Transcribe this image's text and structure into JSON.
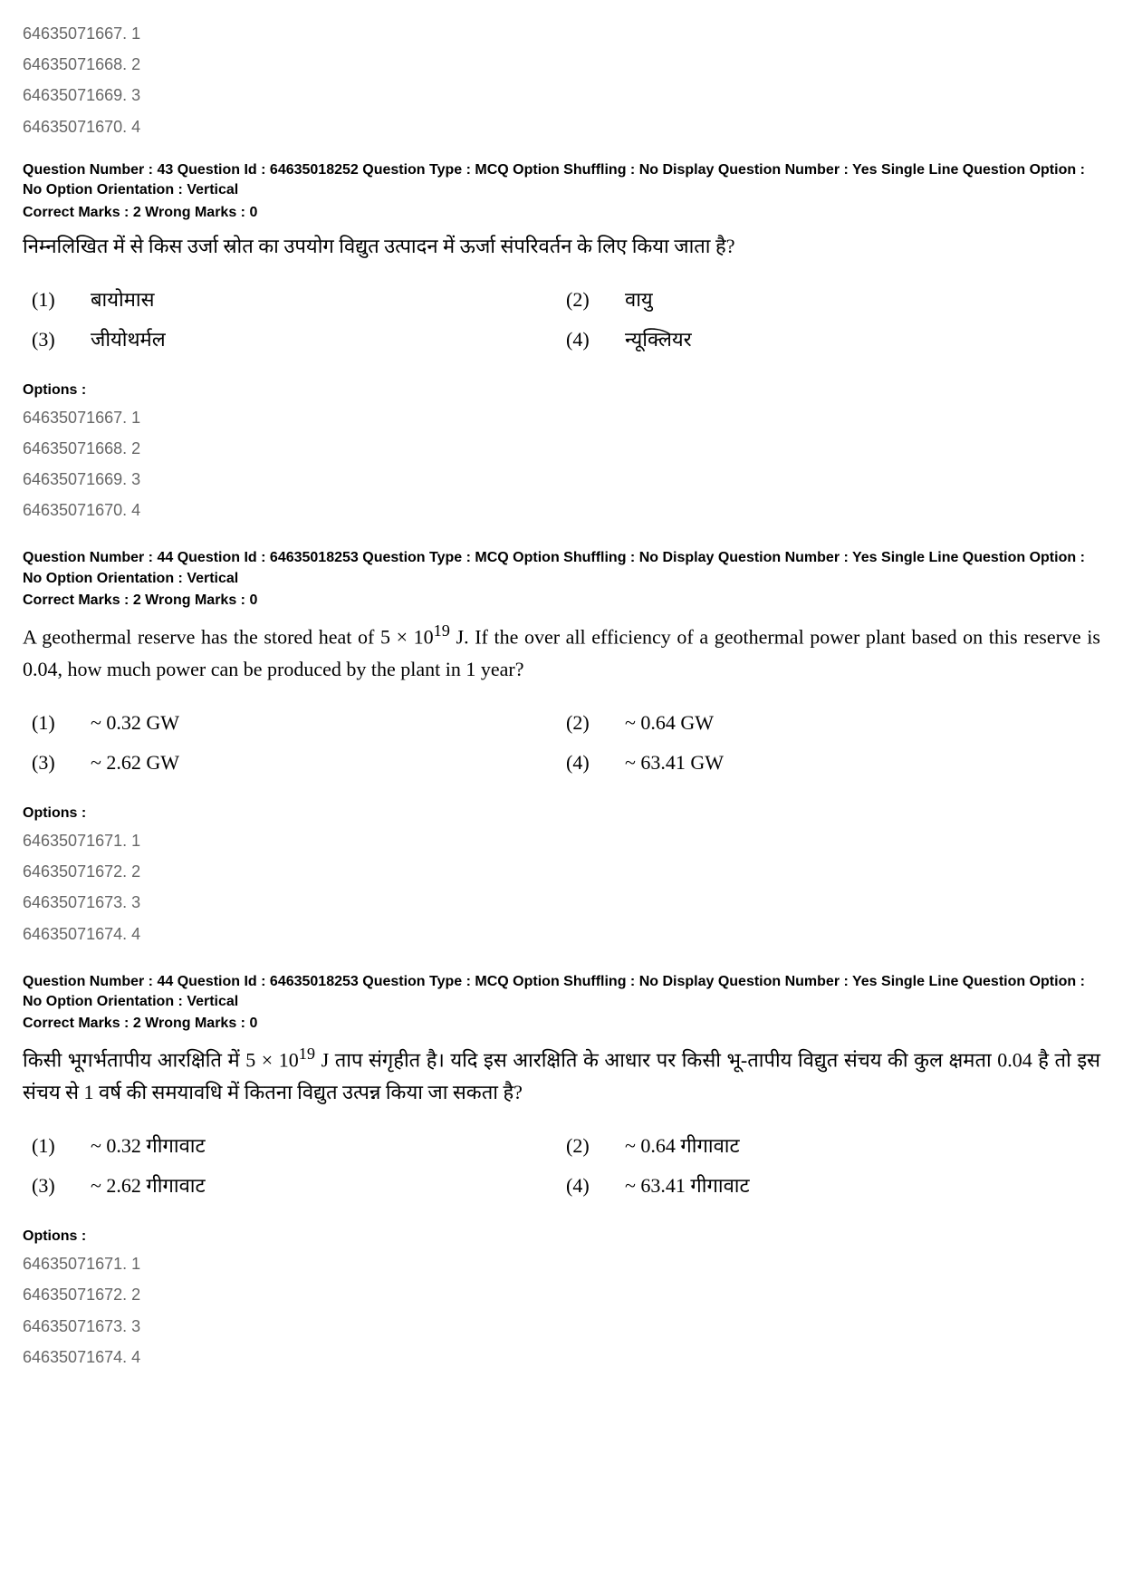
{
  "initial_options": {
    "label": "Options :",
    "items": [
      "64635071667. 1",
      "64635071668. 2",
      "64635071669. 3",
      "64635071670. 4"
    ]
  },
  "q43": {
    "meta": "Question Number : 43  Question Id : 64635018252  Question Type : MCQ  Option Shuffling : No  Display Question Number : Yes  Single Line Question Option : No  Option Orientation : Vertical",
    "marks": "Correct Marks : 2  Wrong Marks : 0",
    "text": "निम्नलिखित में से किस उर्जा स्रोत का उपयोग विद्युत उत्पादन में ऊर्जा संपरिवर्तन के लिए किया जाता है?",
    "choices": [
      {
        "num": "(1)",
        "text": "बायोमास"
      },
      {
        "num": "(2)",
        "text": "वायु"
      },
      {
        "num": "(3)",
        "text": "जीयोथर्मल"
      },
      {
        "num": "(4)",
        "text": "न्यूक्लियर"
      }
    ],
    "options_label": "Options :",
    "options": [
      "64635071667. 1",
      "64635071668. 2",
      "64635071669. 3",
      "64635071670. 4"
    ]
  },
  "q44en": {
    "meta": "Question Number : 44  Question Id : 64635018253  Question Type : MCQ  Option Shuffling : No  Display Question Number : Yes  Single Line Question Option : No  Option Orientation : Vertical",
    "marks": "Correct Marks : 2  Wrong Marks : 0",
    "text_pre": "A geothermal reserve has the stored heat of 5 × 10",
    "text_sup": "19",
    "text_post": " J. If the over all efficiency of a geothermal power plant based on this reserve is 0.04, how much power can be produced by the plant in 1 year?",
    "choices": [
      {
        "num": "(1)",
        "text": "~ 0.32 GW"
      },
      {
        "num": "(2)",
        "text": "~ 0.64 GW"
      },
      {
        "num": "(3)",
        "text": "~ 2.62 GW"
      },
      {
        "num": "(4)",
        "text": "~ 63.41 GW"
      }
    ],
    "options_label": "Options :",
    "options": [
      "64635071671. 1",
      "64635071672. 2",
      "64635071673. 3",
      "64635071674. 4"
    ]
  },
  "q44hi": {
    "meta": "Question Number : 44  Question Id : 64635018253  Question Type : MCQ  Option Shuffling : No  Display Question Number : Yes  Single Line Question Option : No  Option Orientation : Vertical",
    "marks": "Correct Marks : 2  Wrong Marks : 0",
    "text_pre": "किसी भूगर्भतापीय आरक्षिति में 5 × 10",
    "text_sup": "19",
    "text_post": " J ताप संगृहीत है। यदि इस आरक्षिति के आधार पर किसी भू-तापीय विद्युत संचय की कुल क्षमता 0.04 है तो इस संचय से 1 वर्ष की समयावधि में कितना विद्युत उत्पन्न किया जा सकता है?",
    "choices": [
      {
        "num": "(1)",
        "text": "~ 0.32  गीगावाट"
      },
      {
        "num": "(2)",
        "text": "~ 0.64 गीगावाट"
      },
      {
        "num": "(3)",
        "text": "~ 2.62 गीगावाट"
      },
      {
        "num": "(4)",
        "text": "~ 63.41 गीगावाट"
      }
    ],
    "options_label": "Options :",
    "options": [
      "64635071671. 1",
      "64635071672. 2",
      "64635071673. 3",
      "64635071674. 4"
    ]
  }
}
